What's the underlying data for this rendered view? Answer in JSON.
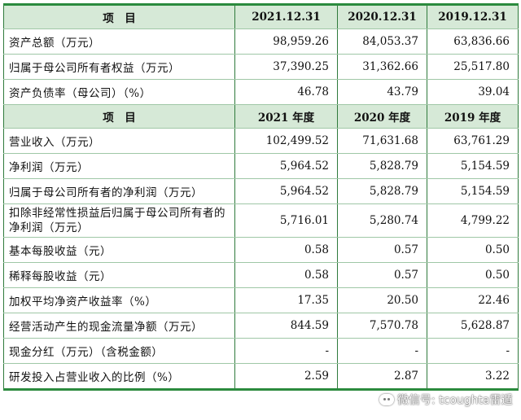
{
  "header1": {
    "item": "项　目",
    "col1": "2021.12.31",
    "col2": "2020.12.31",
    "col3": "2019.12.31"
  },
  "balance_rows": [
    {
      "label": "资产总额（万元）",
      "v1": "98,959.26",
      "v2": "84,053.37",
      "v3": "63,836.66"
    },
    {
      "label": "归属于母公司所有者权益（万元）",
      "v1": "37,390.25",
      "v2": "31,362.66",
      "v3": "25,517.80"
    },
    {
      "label": "资产负债率（母公司）（%）",
      "v1": "46.78",
      "v2": "43.79",
      "v3": "39.04"
    }
  ],
  "header2": {
    "item": "项　目",
    "col1": "2021 年度",
    "col2": "2020 年度",
    "col3": "2019 年度"
  },
  "income_rows": [
    {
      "label": "营业收入（万元）",
      "v1": "102,499.52",
      "v2": "71,631.68",
      "v3": "63,761.29"
    },
    {
      "label": "净利润（万元）",
      "v1": "5,964.52",
      "v2": "5,828.79",
      "v3": "5,154.59"
    },
    {
      "label": "归属于母公司所有者的净利润（万元）",
      "v1": "5,964.52",
      "v2": "5,828.79",
      "v3": "5,154.59"
    },
    {
      "label": "扣除非经常性损益后归属于母公司所有者的净利润（万元）",
      "v1": "5,716.01",
      "v2": "5,280.74",
      "v3": "4,799.22"
    },
    {
      "label": "基本每股收益（元）",
      "v1": "0.58",
      "v2": "0.57",
      "v3": "0.50"
    },
    {
      "label": "稀释每股收益（元）",
      "v1": "0.58",
      "v2": "0.57",
      "v3": "0.50"
    },
    {
      "label": "加权平均净资产收益率（%）",
      "v1": "17.35",
      "v2": "20.50",
      "v3": "22.46"
    },
    {
      "label": "经营活动产生的现金流量净额（万元）",
      "v1": "844.59",
      "v2": "7,570.78",
      "v3": "5,628.87"
    },
    {
      "label": "现金分红（万元）（含税金额）",
      "v1": "-",
      "v2": "-",
      "v3": "-"
    },
    {
      "label": "研发投入占营业收入的比例（%）",
      "v1": "2.59",
      "v2": "2.87",
      "v3": "3.22"
    }
  ],
  "watermark": {
    "text": "微信号: tcoughta雷遁"
  }
}
